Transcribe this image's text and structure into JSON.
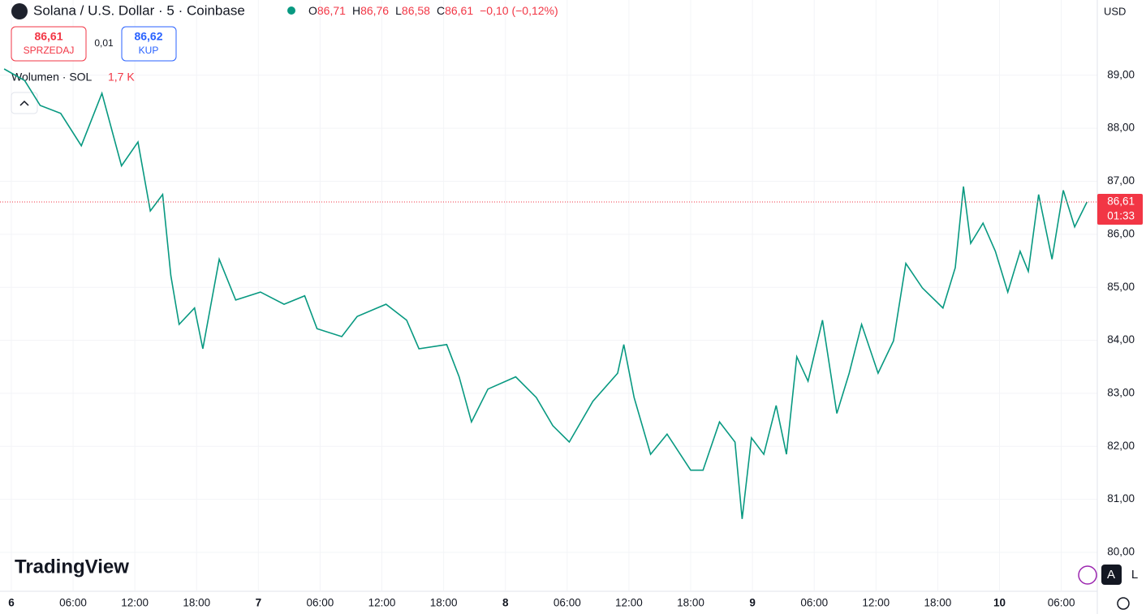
{
  "chart_data": {
    "type": "line",
    "title": "Solana / U.S. Dollar · 5 · Coinbase",
    "ohlc": [
      {
        "key": "O",
        "text": "86,71"
      },
      {
        "key": "H",
        "text": "86,76"
      },
      {
        "key": "L",
        "text": "86,58"
      },
      {
        "key": "C",
        "text": "86,61"
      }
    ],
    "change": "−0,10 (−0,12%)",
    "volume_label": "Wolumen · SOL",
    "volume_value": "1,7 K",
    "currency": "USD",
    "last_price_label": "86,61",
    "countdown": "01:33",
    "x": [
      -0.7,
      1.3,
      2.8,
      4.8,
      6.8,
      8.8,
      10.7,
      12.3,
      13.5,
      14.7,
      15.5,
      16.3,
      17.8,
      18.6,
      20.2,
      21.8,
      24.2,
      26.5,
      28.5,
      29.7,
      32.1,
      33.6,
      36.4,
      38.4,
      39.6,
      42.3,
      43.5,
      44.7,
      46.3,
      49,
      51,
      52.6,
      54.2,
      56.5,
      58.9,
      59.5,
      60.5,
      62.1,
      63.7,
      66,
      67.2,
      68.8,
      70.3,
      71,
      71.9,
      73.1,
      74.3,
      75.3,
      76.3,
      77.4,
      78.8,
      80.2,
      81.4,
      82.6,
      84.2,
      85.7,
      86.9,
      88.5,
      90.5,
      91.7,
      92.5,
      93.2,
      94.4,
      95.6,
      96.8,
      98,
      98.8,
      99.8,
      101.1,
      102.2,
      103.3,
      104.5
    ],
    "series": [
      {
        "name": "SOL/USD",
        "color": "#089981",
        "values": [
          89.12,
          88.9,
          88.43,
          88.28,
          87.67,
          88.66,
          87.29,
          87.74,
          86.44,
          86.75,
          85.22,
          84.3,
          84.61,
          83.84,
          85.53,
          84.76,
          84.91,
          84.68,
          84.84,
          84.22,
          84.07,
          84.45,
          84.68,
          84.38,
          83.84,
          83.92,
          83.31,
          82.46,
          83.08,
          83.31,
          82.92,
          82.39,
          82.08,
          82.85,
          83.38,
          83.92,
          82.92,
          81.85,
          82.23,
          81.55,
          81.55,
          82.46,
          82.08,
          80.63,
          82.16,
          81.85,
          82.77,
          81.85,
          83.69,
          83.23,
          84.38,
          82.62,
          83.38,
          84.3,
          83.38,
          83.99,
          85.45,
          84.99,
          84.61,
          85.37,
          86.9,
          85.83,
          86.21,
          85.68,
          84.91,
          85.68,
          85.3,
          86.75,
          85.53,
          86.83,
          86.14,
          86.61
        ]
      }
    ],
    "xlim": [
      -1.1,
      105.5
    ],
    "ylim": [
      79.28,
      90.42
    ],
    "xticks": [
      {
        "value": 0,
        "label": "6"
      },
      {
        "value": 6,
        "label": "06:00"
      },
      {
        "value": 12,
        "label": "12:00"
      },
      {
        "value": 18,
        "label": "18:00"
      },
      {
        "value": 24,
        "label": "7"
      },
      {
        "value": 30,
        "label": "06:00"
      },
      {
        "value": 36,
        "label": "12:00"
      },
      {
        "value": 42,
        "label": "18:00"
      },
      {
        "value": 48,
        "label": "8"
      },
      {
        "value": 54,
        "label": "06:00"
      },
      {
        "value": 60,
        "label": "12:00"
      },
      {
        "value": 66,
        "label": "18:00"
      },
      {
        "value": 72,
        "label": "9"
      },
      {
        "value": 78,
        "label": "06:00"
      },
      {
        "value": 84,
        "label": "12:00"
      },
      {
        "value": 90,
        "label": "18:00"
      },
      {
        "value": 96,
        "label": "10"
      },
      {
        "value": 102,
        "label": "06:00"
      }
    ],
    "yticks": [
      {
        "value": 80,
        "label": "80,00"
      },
      {
        "value": 81,
        "label": "81,00"
      },
      {
        "value": 82,
        "label": "82,00"
      },
      {
        "value": 83,
        "label": "83,00"
      },
      {
        "value": 84,
        "label": "84,00"
      },
      {
        "value": 85,
        "label": "85,00"
      },
      {
        "value": 86,
        "label": "86,00"
      },
      {
        "value": 87,
        "label": "87,00"
      },
      {
        "value": 88,
        "label": "88,00"
      },
      {
        "value": 89,
        "label": "89,00"
      }
    ],
    "grid": true
  },
  "trade": {
    "sell_price": "86,61",
    "sell_label": "SPRZEDAJ",
    "spread": "0,01",
    "buy_price": "86,62",
    "buy_label": "KUP"
  },
  "brand": "TradingView",
  "axis_buttons": [
    "A",
    "L"
  ]
}
